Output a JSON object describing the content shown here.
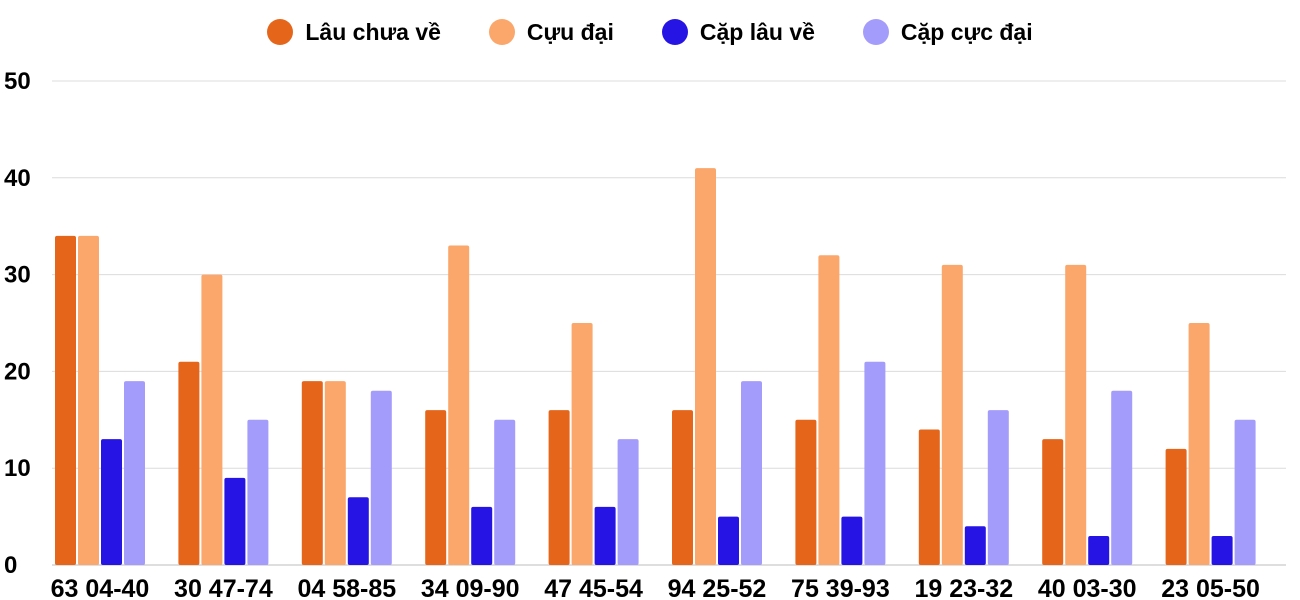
{
  "chart_data": {
    "type": "bar",
    "title": "",
    "xlabel": "",
    "ylabel": "",
    "ylim": [
      0,
      50
    ],
    "yticks": [
      "0",
      "10",
      "20",
      "30",
      "40",
      "50"
    ],
    "grid": true,
    "legend_position": "top-center",
    "categories": [
      "63 04-40",
      "30 47-74",
      "04 58-85",
      "34 09-90",
      "47 45-54",
      "94 25-52",
      "75 39-93",
      "19 23-32",
      "40 03-30",
      "23 05-50"
    ],
    "series": [
      {
        "name": "Lâu chưa về",
        "color": "#e5661a",
        "values": [
          34,
          21,
          19,
          16,
          16,
          16,
          15,
          14,
          13,
          12
        ]
      },
      {
        "name": "Cựu đại",
        "color": "#fba66a",
        "values": [
          34,
          30,
          19,
          33,
          25,
          41,
          32,
          31,
          31,
          25
        ]
      },
      {
        "name": "Cặp lâu về",
        "color": "#2614e4",
        "values": [
          13,
          9,
          7,
          6,
          6,
          5,
          5,
          4,
          3,
          3
        ]
      },
      {
        "name": "Cặp cực đại",
        "color": "#a49cfb",
        "values": [
          19,
          15,
          18,
          15,
          13,
          19,
          21,
          16,
          18,
          15
        ]
      }
    ]
  }
}
